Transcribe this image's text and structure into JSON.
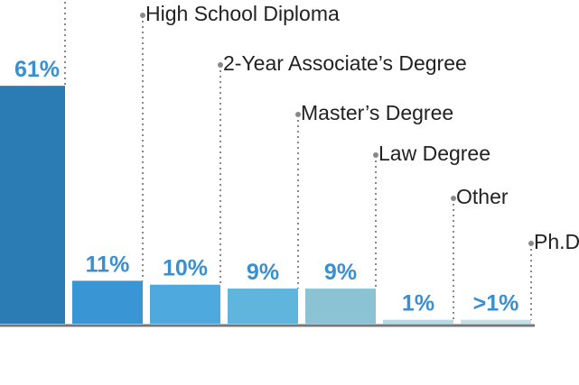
{
  "chart_data": {
    "type": "bar",
    "categories": [
      null,
      "High School Diploma",
      "2-Year Associate’s Degree",
      "Master’s Degree",
      "Law Degree",
      "Other",
      "Ph.D. Degree"
    ],
    "values": [
      61,
      11,
      10,
      9,
      9,
      1,
      1
    ],
    "value_labels": [
      "61%",
      "11%",
      "10%",
      "9%",
      "9%",
      "1%",
      ">1%"
    ],
    "colors": [
      "#2b7bb5",
      "#3a95d4",
      "#4ea9df",
      "#5fb5dc",
      "#8cc3d4",
      "#b3dbe6",
      "#c2e0e8"
    ],
    "ylim": [
      0,
      83
    ]
  }
}
